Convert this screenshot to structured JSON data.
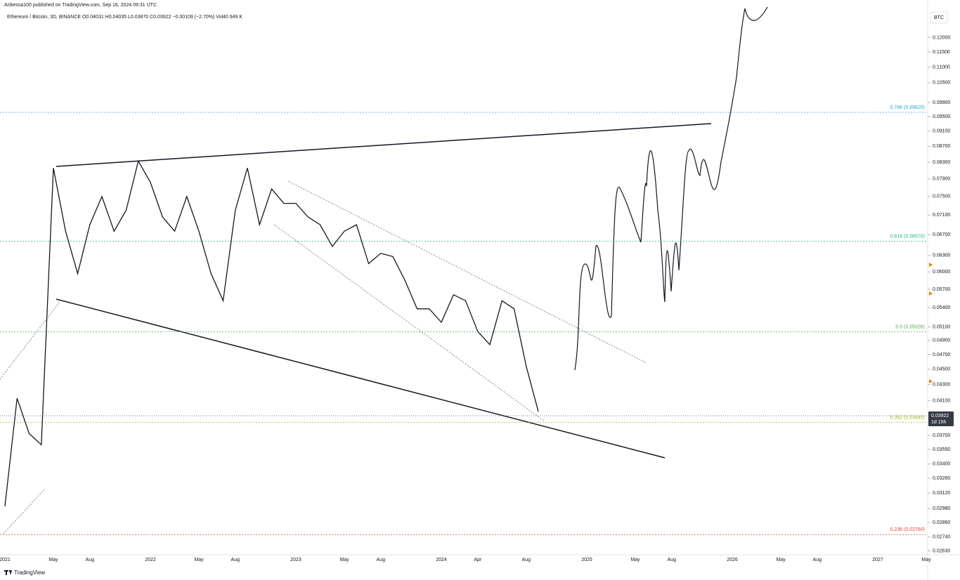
{
  "header": {
    "published": "Anbessa100 published on TradingView.com, Sep 16, 2024 09:31 UTC",
    "symbol": "Ethereum / Bitcoin, 3D, BINANCE  O0.04031  H0.04035  L0.03870  C0.03922  −0.00109 (−2.70%)  Vol40.949 K"
  },
  "footer": {
    "brand": "TradingView"
  },
  "chart_data": {
    "type": "line",
    "currency": "BTC",
    "log_scale": true,
    "categories": [
      "2021",
      null,
      null,
      null,
      "May",
      null,
      null,
      "Aug",
      null,
      null,
      null,
      null,
      "2022",
      null,
      null,
      null,
      "May",
      null,
      null,
      "Aug",
      null,
      null,
      null,
      null,
      "2023",
      null,
      null,
      null,
      "May",
      null,
      null,
      "Aug",
      null,
      null,
      null,
      null,
      "2024",
      null,
      null,
      "Apr",
      null,
      null,
      null,
      "Aug",
      null,
      null,
      null,
      null,
      "2025",
      null,
      null,
      null,
      "May",
      null,
      null,
      "Aug",
      null,
      null,
      null,
      null,
      "2026",
      null,
      null,
      null,
      "May",
      null,
      null,
      "Aug",
      null,
      null,
      null,
      null,
      "2027",
      null,
      null,
      null,
      "May"
    ],
    "series": [
      {
        "color": "#131722",
        "values": [
          0.03,
          0.0413,
          0.0372,
          0.036,
          0.0816,
          0.0677,
          0.0597,
          0.069,
          0.075,
          0.0677,
          0.072,
          0.0833,
          0.0782,
          0.0706,
          0.0677,
          0.075,
          0.0677,
          0.0597,
          0.0551,
          0.072,
          0.0816,
          0.069,
          0.0767,
          0.0735,
          0.0735,
          0.0706,
          0.069,
          0.0647,
          0.0677,
          0.069,
          0.0615,
          0.0634,
          0.0628,
          0.0585,
          0.0538,
          0.0538,
          0.0517,
          0.0561,
          0.0551,
          0.0503,
          0.0484,
          0.0551,
          0.0538,
          0.0454,
          0.0397,
          null,
          null,
          null,
          null,
          null,
          null,
          null,
          null,
          null,
          null,
          null,
          null,
          null,
          null,
          null,
          null,
          null,
          null,
          null,
          null,
          null,
          null,
          null,
          null,
          null,
          null,
          null,
          null,
          null,
          null,
          null,
          null
        ]
      }
    ],
    "ylim": [
      0.026,
      0.13
    ],
    "yticks": [
      {
        "value": 0.12,
        "label": "0.12000"
      },
      {
        "value": 0.115,
        "label": "0.11500"
      },
      {
        "value": 0.11,
        "label": "0.11000"
      },
      {
        "value": 0.105,
        "label": "0.10500"
      },
      {
        "value": 0.099,
        "label": "0.09900"
      },
      {
        "value": 0.095,
        "label": "0.09500"
      },
      {
        "value": 0.091,
        "label": "0.09100"
      },
      {
        "value": 0.087,
        "label": "0.08700"
      },
      {
        "value": 0.083,
        "label": "0.08300"
      },
      {
        "value": 0.079,
        "label": "0.07900"
      },
      {
        "value": 0.075,
        "label": "0.07500"
      },
      {
        "value": 0.071,
        "label": "0.07100"
      },
      {
        "value": 0.067,
        "label": "0.06700"
      },
      {
        "value": 0.063,
        "label": "0.06300"
      },
      {
        "value": 0.06,
        "label": "0.06000"
      },
      {
        "value": 0.057,
        "label": "0.05700"
      },
      {
        "value": 0.054,
        "label": "0.05400"
      },
      {
        "value": 0.051,
        "label": "0.05100"
      },
      {
        "value": 0.049,
        "label": "0.04900"
      },
      {
        "value": 0.047,
        "label": "0.04700"
      },
      {
        "value": 0.045,
        "label": "0.04500"
      },
      {
        "value": 0.043,
        "label": "0.04300"
      },
      {
        "value": 0.041,
        "label": "0.04100"
      },
      {
        "value": 0.037,
        "label": "0.03700"
      },
      {
        "value": 0.0355,
        "label": "0.03550"
      },
      {
        "value": 0.034,
        "label": "0.03400"
      },
      {
        "value": 0.0326,
        "label": "0.03260"
      },
      {
        "value": 0.0312,
        "label": "0.03120"
      },
      {
        "value": 0.0298,
        "label": "0.02980"
      },
      {
        "value": 0.0286,
        "label": "0.02860"
      },
      {
        "value": 0.0274,
        "label": "0.02740"
      },
      {
        "value": 0.0263,
        "label": "0.02630"
      }
    ],
    "levels": [
      {
        "label": "0.786 (0.09620)",
        "value": 0.0962,
        "color": "#2ea3d6"
      },
      {
        "label": "0.618 (0.06570)",
        "value": 0.0657,
        "color": "#20b08a"
      },
      {
        "label": "0.5 (0.05026)",
        "value": 0.05026,
        "color": "#4caf50"
      },
      {
        "label": "0.382 (0.03845)",
        "value": 0.03845,
        "color": "#9bbd1f"
      },
      {
        "label": "0.236 (0.02760)",
        "value": 0.0276,
        "color": "#e04040"
      }
    ],
    "last_price": 0.03922,
    "countdown": "1d 15h"
  }
}
